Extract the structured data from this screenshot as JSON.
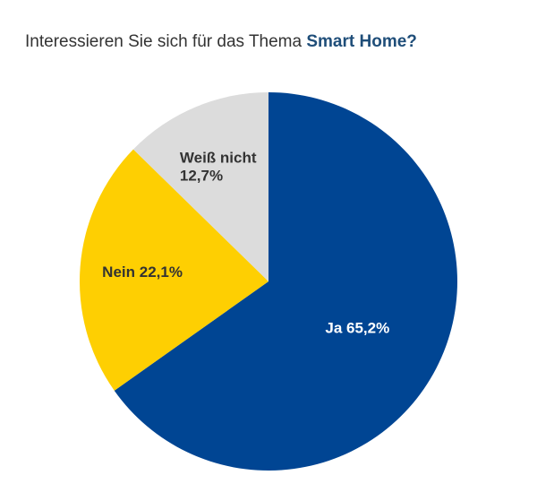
{
  "title": {
    "prefix": "Interessieren Sie sich für das Thema ",
    "highlight": "Smart Home?"
  },
  "chart_data": {
    "type": "pie",
    "title": "Interessieren Sie sich für das Thema Smart Home?",
    "start_angle_deg": 0,
    "direction": "clockwise",
    "slices": [
      {
        "label": "Ja",
        "value": 65.2,
        "value_text": "65,2%",
        "color": "#004593",
        "text_color": "#ffffff"
      },
      {
        "label": "Nein",
        "value": 22.1,
        "value_text": "22,1%",
        "color": "#fecf02",
        "text_color": "#333333"
      },
      {
        "label": "Weiß nicht",
        "value": 12.7,
        "value_text": "12,7%",
        "color": "#dcdcdc",
        "text_color": "#333333"
      }
    ]
  }
}
